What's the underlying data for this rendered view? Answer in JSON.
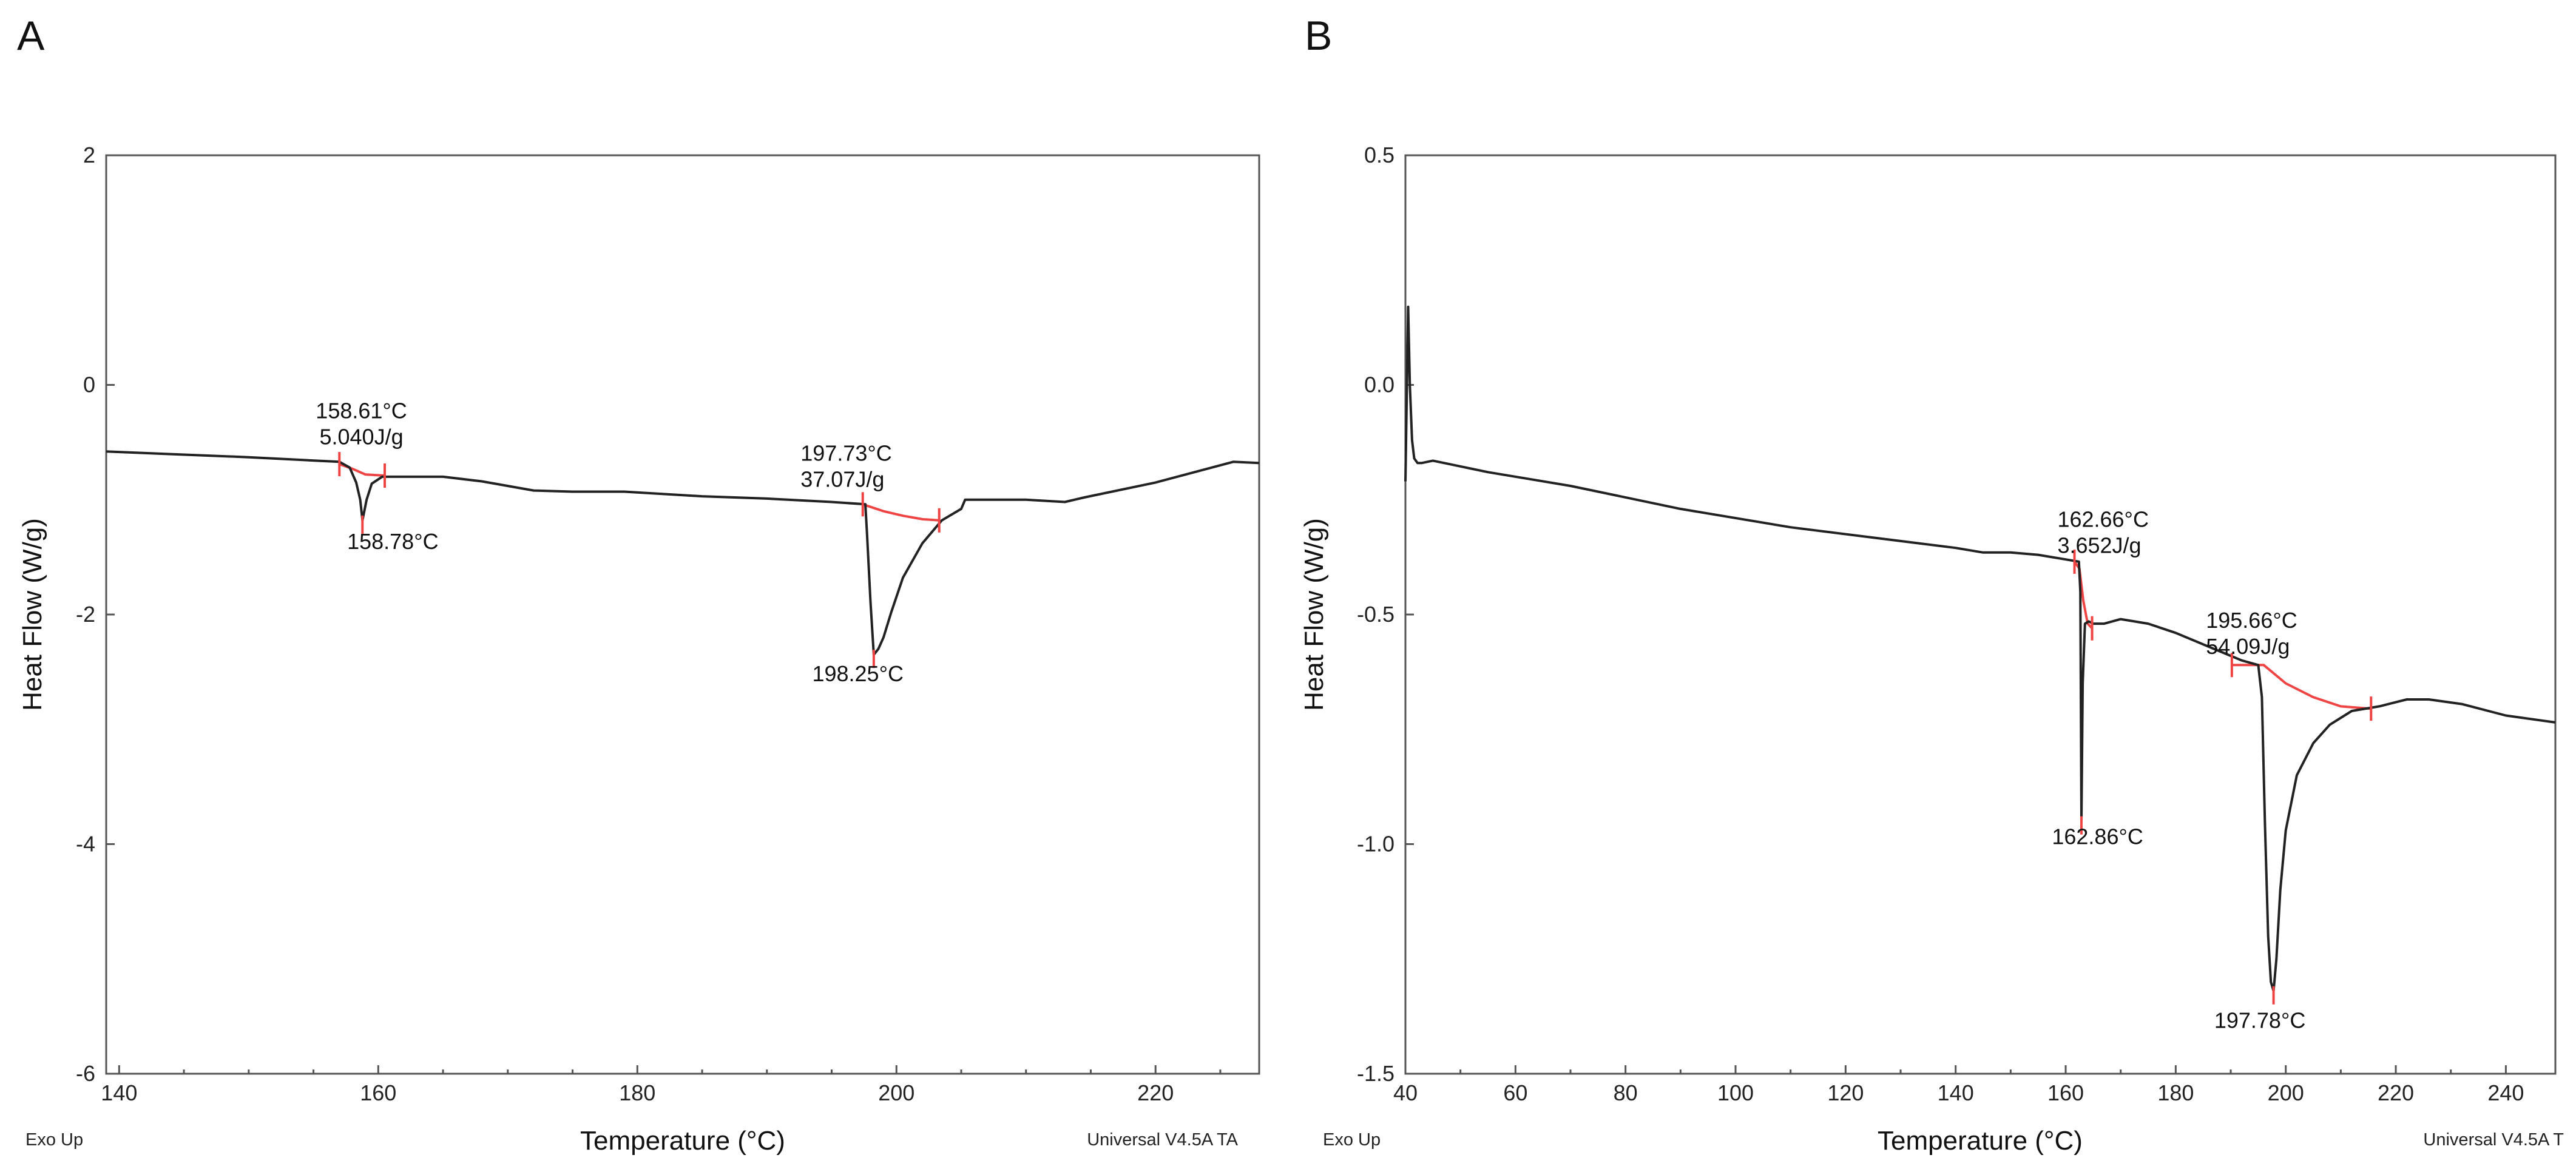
{
  "figure": {
    "footer_left": "Exo Up",
    "footer_right_a": "Universal V4.5A TA",
    "footer_right_b": "Universal V4.5A T",
    "colors": {
      "curve": "#222222",
      "baseline": "#ef4444",
      "frame": "#555555"
    }
  },
  "chart_data": [
    {
      "panel": "A",
      "type": "line",
      "title": "",
      "xlabel": "Temperature (°C)",
      "ylabel": "Heat Flow (W/g)",
      "xlim": [
        139,
        228
      ],
      "ylim": [
        -6,
        2
      ],
      "x_ticks": [
        140,
        160,
        180,
        200,
        220
      ],
      "x_tick_labels": [
        "140",
        "160",
        "180",
        "200",
        "220"
      ],
      "x_minor_step": 5,
      "y_ticks": [
        2,
        0,
        -2,
        -4,
        -6
      ],
      "y_tick_labels": [
        "2",
        "0",
        "-2",
        "-4",
        "-6"
      ],
      "series": [
        {
          "name": "heat flow",
          "x": [
            139,
            150,
            157,
            157.8,
            158.3,
            158.61,
            158.78,
            159.1,
            159.5,
            160.3,
            165,
            168,
            172,
            175,
            179,
            185,
            190,
            195,
            197.6,
            197.73,
            198.0,
            198.25,
            198.6,
            199.0,
            199.6,
            200.5,
            202,
            203.5,
            205,
            205.3,
            210,
            213,
            214.5,
            220,
            226,
            228
          ],
          "y": [
            -0.58,
            -0.63,
            -0.67,
            -0.72,
            -0.85,
            -1.0,
            -1.18,
            -1.0,
            -0.86,
            -0.8,
            -0.8,
            -0.84,
            -0.92,
            -0.93,
            -0.93,
            -0.97,
            -0.99,
            -1.02,
            -1.04,
            -1.3,
            -1.9,
            -2.35,
            -2.3,
            -2.2,
            -1.98,
            -1.68,
            -1.38,
            -1.18,
            -1.08,
            -1.0,
            -1.0,
            -1.02,
            -0.98,
            -0.85,
            -0.67,
            -0.68
          ]
        }
      ],
      "baselines": [
        {
          "x": [
            157.0,
            158.0,
            159.0,
            160.5
          ],
          "y": [
            -0.69,
            -0.73,
            -0.78,
            -0.79
          ]
        },
        {
          "x": [
            197.4,
            199,
            200.5,
            202,
            203.3
          ],
          "y": [
            -1.04,
            -1.1,
            -1.14,
            -1.17,
            -1.18
          ]
        }
      ],
      "limit_marks": [
        {
          "x": 157.0,
          "y": -0.69
        },
        {
          "x": 160.5,
          "y": -0.79
        },
        {
          "x": 197.4,
          "y": -1.04
        },
        {
          "x": 203.3,
          "y": -1.18
        }
      ],
      "peak_marks": [
        {
          "x": 158.78,
          "y": -1.18
        },
        {
          "x": 198.25,
          "y": -2.35
        }
      ],
      "annotations": [
        {
          "lines": [
            "158.61°C",
            "5.040J/g"
          ],
          "x": 158.7,
          "y": -0.29,
          "anchor": "middle"
        },
        {
          "lines": [
            "158.78°C"
          ],
          "x": 157.6,
          "y": -1.43,
          "anchor": "start"
        },
        {
          "lines": [
            "197.73°C",
            "37.07J/g"
          ],
          "x": 192.6,
          "y": -0.66,
          "anchor": "start"
        },
        {
          "lines": [
            "198.25°C"
          ],
          "x": 193.5,
          "y": -2.58,
          "anchor": "start"
        }
      ]
    },
    {
      "panel": "B",
      "type": "line",
      "title": "",
      "xlabel": "Temperature (°C)",
      "ylabel": "Heat Flow (W/g)",
      "xlim": [
        40,
        249
      ],
      "ylim": [
        -1.5,
        0.5
      ],
      "x_ticks": [
        40,
        60,
        80,
        100,
        120,
        140,
        160,
        180,
        200,
        220,
        240
      ],
      "x_tick_labels": [
        "40",
        "60",
        "80",
        "100",
        "120",
        "140",
        "160",
        "180",
        "200",
        "220",
        "240"
      ],
      "x_minor_step": 10,
      "y_ticks": [
        0.5,
        0.0,
        -0.5,
        -1.0,
        -1.5
      ],
      "y_tick_labels": [
        "0.5",
        "0.0",
        "-0.5",
        "-1.0",
        "-1.5"
      ],
      "series": [
        {
          "name": "heat flow",
          "x": [
            40,
            40.5,
            40.8,
            41.2,
            41.6,
            42.2,
            43,
            45,
            47,
            55,
            70,
            90,
            110,
            130,
            140,
            145,
            150,
            155,
            160,
            162.4,
            162.66,
            162.86,
            163.1,
            163.5,
            164.2,
            165,
            167,
            170,
            175,
            180,
            188,
            192,
            195,
            195.66,
            196.2,
            196.8,
            197.3,
            197.78,
            198.3,
            199,
            200,
            202,
            205,
            208,
            212,
            217,
            222,
            226,
            232,
            240,
            249
          ],
          "y": [
            -0.21,
            0.17,
            0.0,
            -0.12,
            -0.16,
            -0.17,
            -0.17,
            -0.165,
            -0.17,
            -0.19,
            -0.22,
            -0.27,
            -0.31,
            -0.34,
            -0.355,
            -0.365,
            -0.365,
            -0.37,
            -0.38,
            -0.385,
            -0.45,
            -0.95,
            -0.65,
            -0.52,
            -0.515,
            -0.52,
            -0.52,
            -0.51,
            -0.52,
            -0.54,
            -0.58,
            -0.6,
            -0.61,
            -0.68,
            -0.95,
            -1.2,
            -1.3,
            -1.32,
            -1.25,
            -1.1,
            -0.97,
            -0.85,
            -0.78,
            -0.74,
            -0.71,
            -0.7,
            -0.685,
            -0.685,
            -0.695,
            -0.72,
            -0.735
          ]
        }
      ],
      "baselines": [
        {
          "x": [
            161.6,
            162.5,
            163.2,
            164.0,
            164.8
          ],
          "y": [
            -0.385,
            -0.4,
            -0.47,
            -0.52,
            -0.53
          ]
        },
        {
          "x": [
            190.2,
            193,
            196,
            200,
            205,
            210,
            215.5
          ],
          "y": [
            -0.61,
            -0.61,
            -0.61,
            -0.65,
            -0.68,
            -0.7,
            -0.705
          ]
        }
      ],
      "limit_marks": [
        {
          "x": 161.6,
          "y": -0.385
        },
        {
          "x": 164.8,
          "y": -0.53
        },
        {
          "x": 190.2,
          "y": -0.61
        },
        {
          "x": 215.5,
          "y": -0.705
        }
      ],
      "peak_marks": [
        {
          "x": 162.86,
          "y": -0.95
        },
        {
          "x": 197.78,
          "y": -1.32
        }
      ],
      "annotations": [
        {
          "lines": [
            "162.66°C",
            "3.652J/g"
          ],
          "x": 158.5,
          "y": -0.309,
          "anchor": "start"
        },
        {
          "lines": [
            "162.86°C"
          ],
          "x": 157.5,
          "y": -1.0,
          "anchor": "start"
        },
        {
          "lines": [
            "195.66°C",
            "54.09J/g"
          ],
          "x": 185.5,
          "y": -0.529,
          "anchor": "start"
        },
        {
          "lines": [
            "197.78°C"
          ],
          "x": 187,
          "y": -1.4,
          "anchor": "start"
        }
      ]
    }
  ]
}
